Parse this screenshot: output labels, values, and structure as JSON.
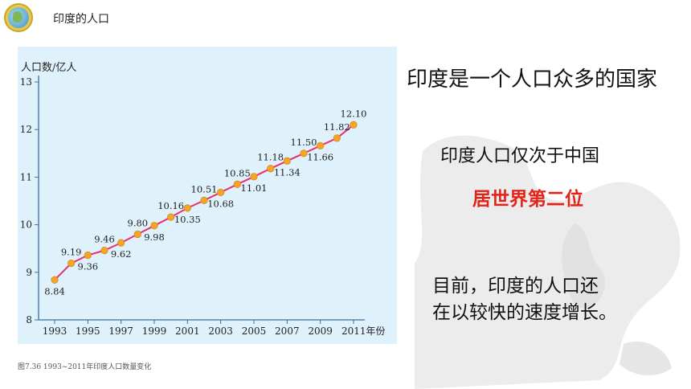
{
  "header": {
    "title": "印度的人口"
  },
  "slide": {
    "line1": "印度是一个人口众多的国家",
    "line2": "印度人口仅次于中国",
    "line3": "居世界第二位",
    "line4a": "目前，印度的人口还",
    "line4b": "在以较快的速度增长。"
  },
  "caption": "图7.36 1993~2011年印度人口数量变化",
  "colors": {
    "line": "#e8306d",
    "marker": "#f5a623",
    "axis": "#3a6fa0",
    "panel": "#dff1fb",
    "highlight": "#e3221a"
  },
  "chart_data": {
    "type": "line",
    "ylabel": "人口数/亿人",
    "xlabel": "年份",
    "ylim": [
      8,
      13
    ],
    "yticks": [
      8,
      9,
      10,
      11,
      12,
      13
    ],
    "xticks": [
      1993,
      1995,
      1997,
      1999,
      2001,
      2003,
      2005,
      2007,
      2009,
      2011
    ],
    "x_last_tick_label": "2011年份",
    "x": [
      1993,
      1994,
      1995,
      1996,
      1997,
      1998,
      1999,
      2000,
      2001,
      2002,
      2003,
      2004,
      2005,
      2006,
      2007,
      2008,
      2009,
      2010,
      2011
    ],
    "values": [
      8.84,
      9.19,
      9.36,
      9.46,
      9.62,
      9.8,
      9.98,
      10.16,
      10.35,
      10.51,
      10.68,
      10.85,
      11.01,
      11.18,
      11.34,
      11.5,
      11.66,
      11.82,
      12.1
    ],
    "data_labels": [
      "8.84",
      "9.19",
      "9.36",
      "9.46",
      "9.62",
      "9.80",
      "9.98",
      "10.16",
      "10.35",
      "10.51",
      "10.68",
      "10.85",
      "11.01",
      "11.18",
      "11.34",
      "11.50",
      "11.66",
      "11.82",
      "12.10"
    ],
    "label_position": [
      "below",
      "above",
      "below",
      "above",
      "below",
      "above",
      "below",
      "above",
      "below",
      "above",
      "below",
      "above",
      "below",
      "above",
      "below",
      "above",
      "below",
      "above",
      "above"
    ],
    "grid": false
  }
}
